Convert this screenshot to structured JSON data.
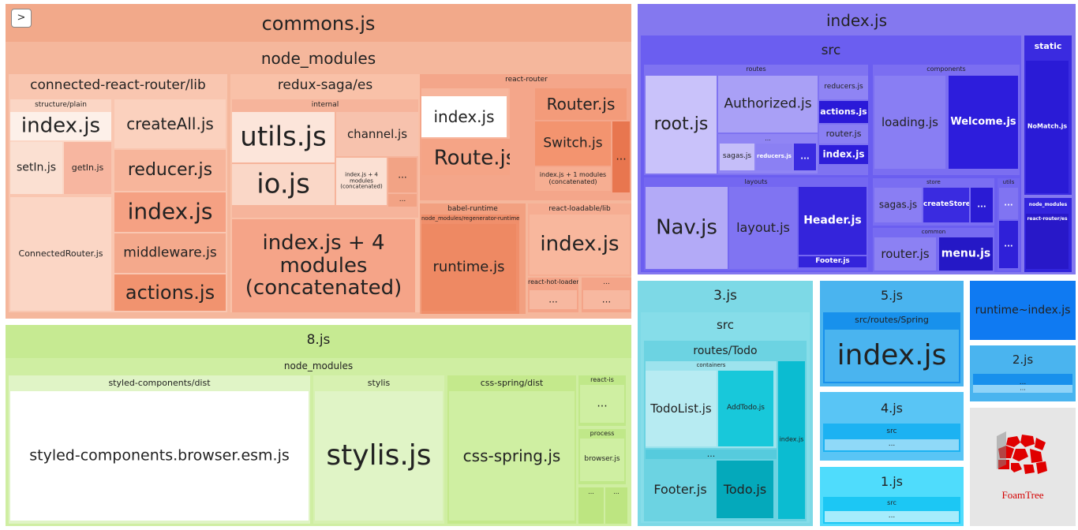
{
  "treemap": {
    "commons": {
      "label": "commons.js",
      "node_modules": {
        "label": "node_modules",
        "crr": {
          "label": "connected-react-router/lib",
          "structure_plain": "structure/plain",
          "index": "index.js",
          "setIn": "setIn.js",
          "getIn": "getIn.js",
          "connectedRouter": "ConnectedRouter.js",
          "createAll": "createAll.js",
          "reducer": "reducer.js",
          "index2": "index.js",
          "middleware": "middleware.js",
          "actions": "actions.js"
        },
        "saga": {
          "label": "redux-saga/es",
          "internal": "internal",
          "utils": "utils.js",
          "io": "io.js",
          "channel": "channel.js",
          "small_concat": "index.js + 4 modules (concatenated)",
          "ellipsis": "...",
          "big_concat": "index.js + 4 modules (concatenated)"
        },
        "router": {
          "label": "react-router",
          "index": "index.js",
          "route": "Route.js",
          "router": "Router.js",
          "switch": "Switch.js",
          "concat": "index.js + 1 modules (concatenated)",
          "ellipsis": "..."
        },
        "babel": {
          "label": "babel-runtime",
          "regen": "node_modules/regenerator-runtime",
          "runtime": "runtime.js"
        },
        "loadable": {
          "label": "react-loadable/lib",
          "index": "index.js"
        },
        "hot": {
          "label": "react-hot-loader",
          "ellipsis": "..."
        }
      }
    },
    "index": {
      "label": "index.js",
      "src": {
        "label": "src",
        "routes": {
          "label": "routes",
          "root": "root.js",
          "authorized": "Authorized.js",
          "sagas": "sagas.js",
          "reducers_small": "reducers.js",
          "reducers": "reducers.js",
          "actions": "actions.js",
          "router": "router.js",
          "index": "index.js",
          "ellipsis": "..."
        },
        "components": {
          "label": "components",
          "loading": "loading.js",
          "welcome": "Welcome.js"
        },
        "layouts": {
          "label": "layouts",
          "nav": "Nav.js",
          "layout": "layout.js",
          "header": "Header.js",
          "footer": "Footer.js"
        },
        "store": {
          "label": "store",
          "sagas": "sagas.js",
          "createStore": "createStore.js",
          "ellipsis": "..."
        },
        "common": {
          "label": "common",
          "router": "router.js",
          "menu": "menu.js"
        },
        "utils": {
          "label": "utils",
          "ellipsis": "..."
        }
      },
      "static": {
        "label": "static",
        "nomatch": "NoMatch.js"
      },
      "node_modules": {
        "label": "node_modules",
        "rr_es": "react-router/es"
      }
    },
    "eight": {
      "label": "8.js",
      "node_modules": "node_modules",
      "styled": {
        "label": "styled-components/dist",
        "file": "styled-components.browser.esm.js"
      },
      "stylis": {
        "label": "stylis",
        "file": "stylis.js"
      },
      "spring": {
        "label": "css-spring/dist",
        "file": "css-spring.js"
      },
      "reactis": {
        "label": "react-is",
        "ellipsis": "..."
      },
      "process": {
        "label": "process",
        "file": "browser.js"
      },
      "ellipsis": "..."
    },
    "three": {
      "label": "3.js",
      "src": "src",
      "routes_todo": "routes/Todo",
      "containers": "containers",
      "todolist": "TodoList.js",
      "addtodo": "AddTodo.js",
      "footer": "Footer.js",
      "todo": "Todo.js",
      "index": "index.js",
      "ellipsis": "..."
    },
    "five": {
      "label": "5.js",
      "spring": "src/routes/Spring",
      "index": "index.js"
    },
    "four": {
      "label": "4.js",
      "src": "src",
      "ellipsis": "..."
    },
    "one": {
      "label": "1.js",
      "src": "src",
      "ellipsis": "..."
    },
    "runtime": {
      "label": "runtime~index.js"
    },
    "two": {
      "label": "2.js",
      "ellipsis": "..."
    }
  },
  "toggle": {
    "label": ">"
  },
  "logo": {
    "text": "FoamTree"
  },
  "colors": {
    "commons": "#f2a98a",
    "index": "#8478ef",
    "eight": "#c6ea92",
    "three": "#7dd9e6",
    "five": "#4ab4ef",
    "runtime": "#0f7af2",
    "logo": "#e00000"
  }
}
